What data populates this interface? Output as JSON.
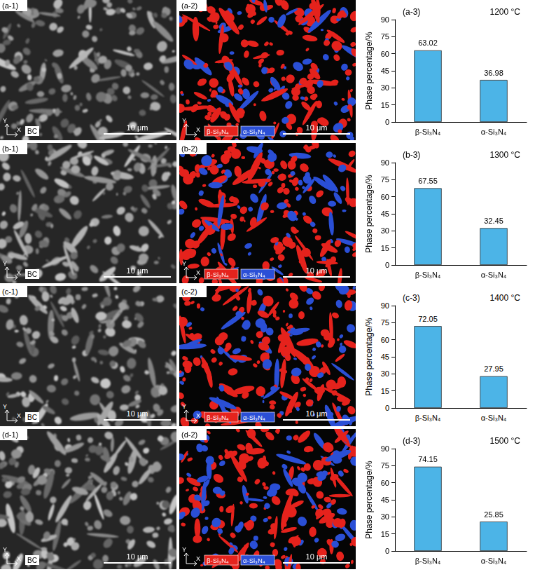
{
  "chart_data": [
    {
      "type": "bar",
      "panel_label": "(a-3)",
      "annotation": "1200 °C",
      "ylabel": "Phase percentage/%",
      "categories": [
        "β-Si₃N₄",
        "α-Si₃N₄"
      ],
      "values": [
        63.02,
        36.98
      ],
      "color": "#4cb4e7",
      "ylim": [
        0,
        90
      ],
      "yticks": [
        0,
        15,
        30,
        45,
        60,
        75,
        90
      ],
      "data_labels": true,
      "grid": false
    },
    {
      "type": "bar",
      "panel_label": "(b-3)",
      "annotation": "1300 °C",
      "ylabel": "Phase percentage/%",
      "categories": [
        "β-Si₃N₄",
        "α-Si₃N₄"
      ],
      "values": [
        67.55,
        32.45
      ],
      "color": "#4cb4e7",
      "ylim": [
        0,
        90
      ],
      "yticks": [
        0,
        15,
        30,
        45,
        60,
        75,
        90
      ],
      "data_labels": true,
      "grid": false
    },
    {
      "type": "bar",
      "panel_label": "(c-3)",
      "annotation": "1400 °C",
      "ylabel": "Phase percentage/%",
      "categories": [
        "β-Si₃N₄",
        "α-Si₃N₄"
      ],
      "values": [
        72.05,
        27.95
      ],
      "color": "#4cb4e7",
      "ylim": [
        0,
        90
      ],
      "yticks": [
        0,
        15,
        30,
        45,
        60,
        75,
        90
      ],
      "data_labels": true,
      "grid": false
    },
    {
      "type": "bar",
      "panel_label": "(d-3)",
      "annotation": "1500 °C",
      "ylabel": "Phase percentage/%",
      "categories": [
        "β-Si₃N₄",
        "α-Si₃N₄"
      ],
      "values": [
        74.15,
        25.85
      ],
      "color": "#4cb4e7",
      "ylim": [
        0,
        90
      ],
      "yticks": [
        0,
        15,
        30,
        45,
        60,
        75,
        90
      ],
      "data_labels": true,
      "grid": false
    }
  ],
  "image_panels": [
    [
      {
        "label": "(a-1)",
        "map": "BC",
        "axes": [
          "Y",
          "X"
        ],
        "scale_bar": "10 μm"
      },
      {
        "label": "(a-2)",
        "axes": [
          "Y",
          "X"
        ],
        "legend": [
          "β-Si₃N₄",
          "α-Si₃N₄"
        ],
        "legend_colors": [
          "#e5231d",
          "#2b4fd6"
        ],
        "scale_bar": "10 μm"
      }
    ],
    [
      {
        "label": "(b-1)",
        "map": "BC",
        "axes": [
          "Y",
          "X"
        ],
        "scale_bar": "10 μm"
      },
      {
        "label": "(b-2)",
        "axes": [
          "Y",
          "X"
        ],
        "legend": [
          "β-Si₃N₄",
          "α-Si₃N₄"
        ],
        "legend_colors": [
          "#e5231d",
          "#2b4fd6"
        ],
        "scale_bar": "10 μm"
      }
    ],
    [
      {
        "label": "(c-1)",
        "map": "BC",
        "axes": [
          "Y",
          "X"
        ],
        "scale_bar": "10 μm"
      },
      {
        "label": "(c-2)",
        "axes": [
          "Y",
          "X"
        ],
        "legend": [
          "β-Si₃N₄",
          "α-Si₃N₄"
        ],
        "legend_colors": [
          "#e5231d",
          "#2b4fd6"
        ],
        "scale_bar": "10 μm"
      }
    ],
    [
      {
        "label": "(d-1)",
        "map": "BC",
        "axes": [
          "Y",
          "X"
        ],
        "scale_bar": "10 μm"
      },
      {
        "label": "(d-2)",
        "axes": [
          "Y",
          "X"
        ],
        "legend": [
          "β-Si₃N₄",
          "α-Si₃N₄"
        ],
        "legend_colors": [
          "#e5231d",
          "#2b4fd6"
        ],
        "scale_bar": "10 μm"
      }
    ]
  ]
}
